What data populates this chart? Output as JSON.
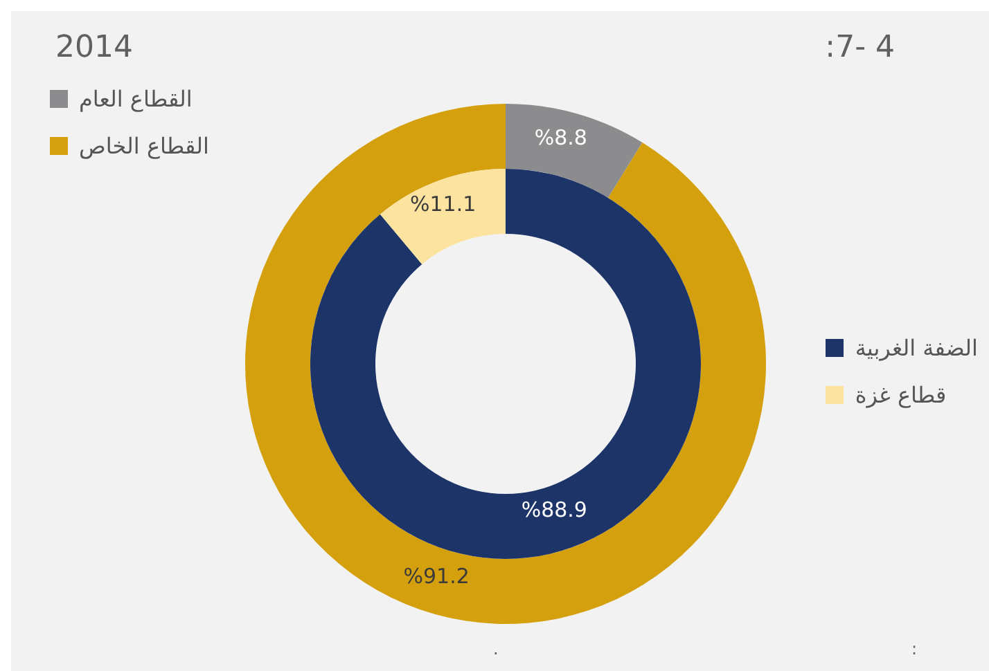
{
  "chart_data": [
    {
      "type": "donut",
      "title": ":7- 4",
      "subtitle": "2014",
      "categories": [
        "القطاع العام",
        "القطاع الخاص"
      ],
      "values": [
        8.8,
        91.2
      ],
      "colors": [
        "#8c8c8f",
        "#d4a00e"
      ],
      "value_labels": [
        "%8.8",
        "%91.2"
      ],
      "legend": "top left",
      "annotations": [
        ".",
        ":"
      ]
    },
    {
      "type": "donut",
      "categories": [
        "الضفة الغربية",
        "قطاع غزة"
      ],
      "values": [
        88.9,
        11.1
      ],
      "colors": [
        "#1d3469",
        "#fde3a0"
      ],
      "value_labels": [
        "%88.9",
        "%11.1"
      ],
      "legend": "right"
    }
  ]
}
